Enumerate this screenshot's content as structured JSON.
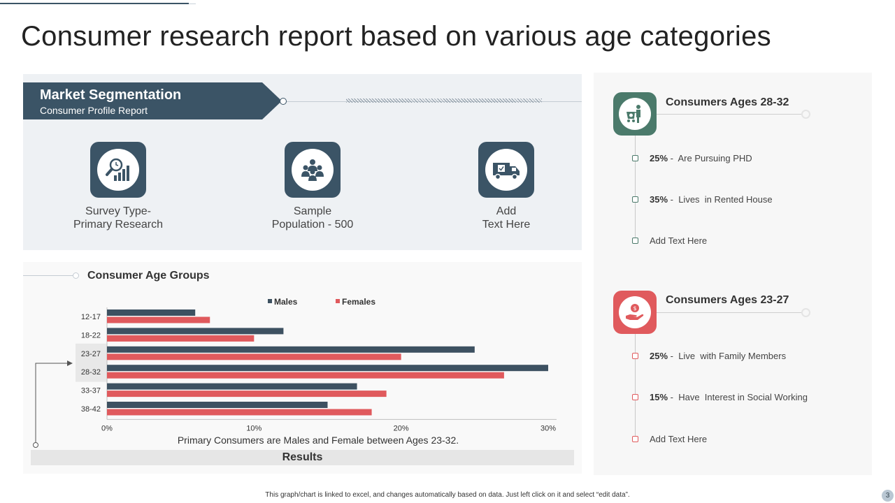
{
  "title": "Consumer research report based on various age categories",
  "segmentation": {
    "title": "Market Segmentation",
    "subtitle": "Consumer Profile Report",
    "items": [
      {
        "icon": "magnifier-chart-icon",
        "line1": "Survey Type-",
        "line2": "Primary Research"
      },
      {
        "icon": "people-group-icon",
        "line1": "Sample",
        "line2": "Population - 500"
      },
      {
        "icon": "delivery-truck-icon",
        "line1": "Add",
        "line2": "Text Here"
      }
    ]
  },
  "age_groups": {
    "heading": "Consumer Age Groups",
    "caption": "Primary Consumers are Males and Female between Ages 23-32.",
    "results_label": "Results"
  },
  "chart_data": {
    "type": "bar",
    "orientation": "horizontal",
    "title": "Consumer Age Groups",
    "categories": [
      "12-17",
      "18-22",
      "23-27",
      "28-32",
      "33-37",
      "38-42"
    ],
    "series": [
      {
        "name": "Males",
        "color": "#3d5161",
        "values": [
          6,
          12,
          25,
          30,
          17,
          15
        ]
      },
      {
        "name": "Females",
        "color": "#e05a5d",
        "values": [
          7,
          10,
          20,
          27,
          19,
          18
        ]
      }
    ],
    "xlim": [
      0,
      30
    ],
    "xticks": [
      "0%",
      "10%",
      "20%",
      "30%"
    ],
    "xlabel": "",
    "ylabel": "",
    "legend": "top-center",
    "highlighted_categories": [
      "23-27",
      "28-32"
    ]
  },
  "groups": [
    {
      "title": "Consumers Ages 28-32",
      "icon": "shopping-cart-person-icon",
      "color": "#4b7a6b",
      "items": [
        {
          "pct": "25%",
          "sep": " -  ",
          "text": "Are Pursuing PHD"
        },
        {
          "pct": "35%",
          "sep": " -  ",
          "text": "Lives  in Rented House"
        },
        {
          "pct": "",
          "sep": "",
          "text": "Add Text Here"
        }
      ]
    },
    {
      "title": "Consumers Ages 23-27",
      "icon": "hand-money-icon",
      "color": "#e05a5d",
      "items": [
        {
          "pct": "25%",
          "sep": " -  ",
          "text": "Live  with Family Members"
        },
        {
          "pct": "15%",
          "sep": " -  ",
          "text": "Have  Interest in Social Working"
        },
        {
          "pct": "",
          "sep": "",
          "text": "Add Text Here"
        }
      ]
    }
  ],
  "footer": "This graph/chart is linked to excel, and changes automatically based on data. Just left click on it and select “edit data”.",
  "page_number": "3"
}
